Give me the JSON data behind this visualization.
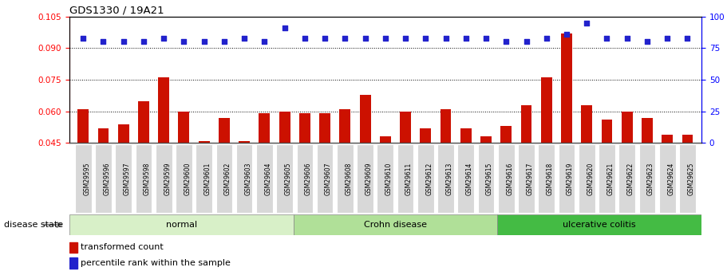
{
  "title": "GDS1330 / 19A21",
  "samples": [
    "GSM29595",
    "GSM29596",
    "GSM29597",
    "GSM29598",
    "GSM29599",
    "GSM29600",
    "GSM29601",
    "GSM29602",
    "GSM29603",
    "GSM29604",
    "GSM29605",
    "GSM29606",
    "GSM29607",
    "GSM29608",
    "GSM29609",
    "GSM29610",
    "GSM29611",
    "GSM29612",
    "GSM29613",
    "GSM29614",
    "GSM29615",
    "GSM29616",
    "GSM29617",
    "GSM29618",
    "GSM29619",
    "GSM29620",
    "GSM29621",
    "GSM29622",
    "GSM29623",
    "GSM29624",
    "GSM29625"
  ],
  "bar_values": [
    0.061,
    0.052,
    0.054,
    0.065,
    0.076,
    0.06,
    0.046,
    0.057,
    0.046,
    0.059,
    0.06,
    0.059,
    0.059,
    0.061,
    0.068,
    0.048,
    0.06,
    0.052,
    0.061,
    0.052,
    0.048,
    0.053,
    0.063,
    0.076,
    0.097,
    0.063,
    0.056,
    0.06,
    0.057,
    0.049,
    0.049
  ],
  "dot_values": [
    83,
    80,
    80,
    80,
    83,
    80,
    80,
    80,
    83,
    80,
    91,
    83,
    83,
    83,
    83,
    83,
    83,
    83,
    83,
    83,
    83,
    80,
    80,
    83,
    86,
    95,
    83,
    83,
    80,
    83,
    83
  ],
  "groups": [
    {
      "label": "normal",
      "start": 0,
      "end": 11,
      "color": "#d8f0c8"
    },
    {
      "label": "Crohn disease",
      "start": 11,
      "end": 21,
      "color": "#b0e098"
    },
    {
      "label": "ulcerative colitis",
      "start": 21,
      "end": 31,
      "color": "#44bb44"
    }
  ],
  "ylim_left": [
    0.045,
    0.105
  ],
  "ylim_right": [
    0,
    100
  ],
  "yticks_left": [
    0.045,
    0.06,
    0.075,
    0.09,
    0.105
  ],
  "yticks_right": [
    0,
    25,
    50,
    75,
    100
  ],
  "bar_color": "#cc1100",
  "dot_color": "#2222cc",
  "bar_width": 0.55,
  "label_transformed": "transformed count",
  "label_percentile": "percentile rank within the sample",
  "disease_state_label": "disease state",
  "ticklabel_bg": "#d8d8d8",
  "n_samples": 31
}
